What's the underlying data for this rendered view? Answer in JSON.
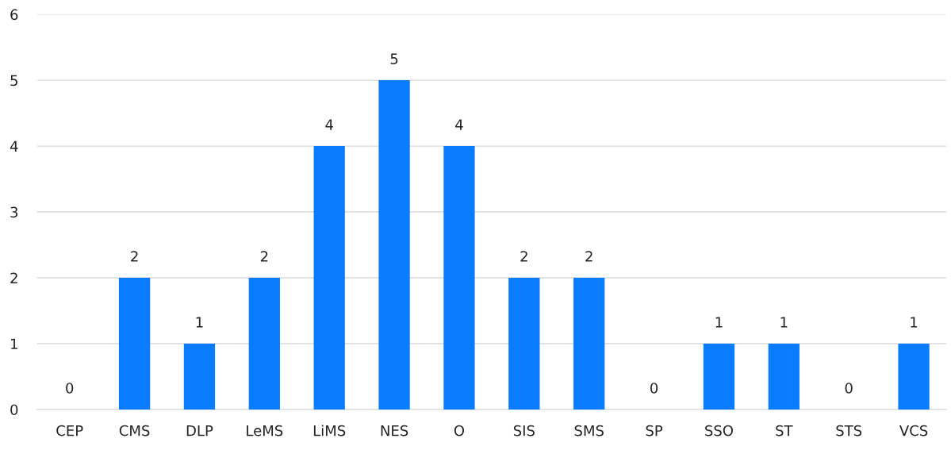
{
  "chart_data": {
    "type": "bar",
    "categories": [
      "CEP",
      "CMS",
      "DLP",
      "LeMS",
      "LiMS",
      "NES",
      "O",
      "SIS",
      "SMS",
      "SP",
      "SSO",
      "ST",
      "STS",
      "VCS"
    ],
    "values": [
      0,
      2,
      1,
      2,
      4,
      5,
      4,
      2,
      2,
      0,
      1,
      1,
      0,
      1
    ],
    "color": "#0a7cff",
    "ylim": [
      0,
      6
    ],
    "yticks": [
      0,
      1,
      2,
      3,
      4,
      5,
      6
    ],
    "grid": "y",
    "data_labels": true
  }
}
